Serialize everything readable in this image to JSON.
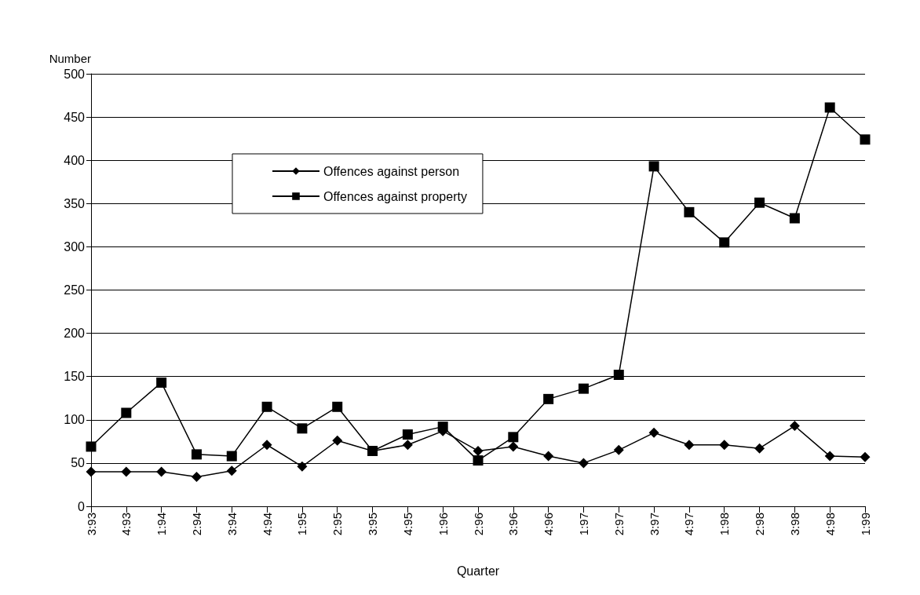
{
  "chart_data": {
    "type": "line",
    "xlabel": "Quarter",
    "ylabel": "Number",
    "categories": [
      "3:93",
      "4:93",
      "1:94",
      "2:94",
      "3:94",
      "4:94",
      "1:95",
      "2:95",
      "3:95",
      "4:95",
      "1:96",
      "2:96",
      "3:96",
      "4:96",
      "1:97",
      "2:97",
      "3:97",
      "4:97",
      "1:98",
      "2:98",
      "3:98",
      "4:98",
      "1:99"
    ],
    "series": [
      {
        "name": "Offences against person",
        "color": "#000000",
        "marker": "diamond",
        "values": [
          40,
          40,
          40,
          34,
          41,
          71,
          46,
          76,
          64,
          71,
          87,
          64,
          69,
          58,
          50,
          65,
          85,
          71,
          71,
          67,
          93,
          58,
          57
        ]
      },
      {
        "name": "Offences against property",
        "color": "#000000",
        "marker": "square",
        "values": [
          69,
          108,
          143,
          60,
          58,
          115,
          90,
          115,
          64,
          83,
          92,
          53,
          80,
          124,
          136,
          152,
          393,
          340,
          305,
          351,
          333,
          461,
          424
        ]
      }
    ],
    "ylim": [
      0,
      500
    ],
    "yticks": [
      0,
      50,
      100,
      150,
      200,
      250,
      300,
      350,
      400,
      450,
      500
    ],
    "grid": "y",
    "legend": "top",
    "line_style": "solid"
  }
}
